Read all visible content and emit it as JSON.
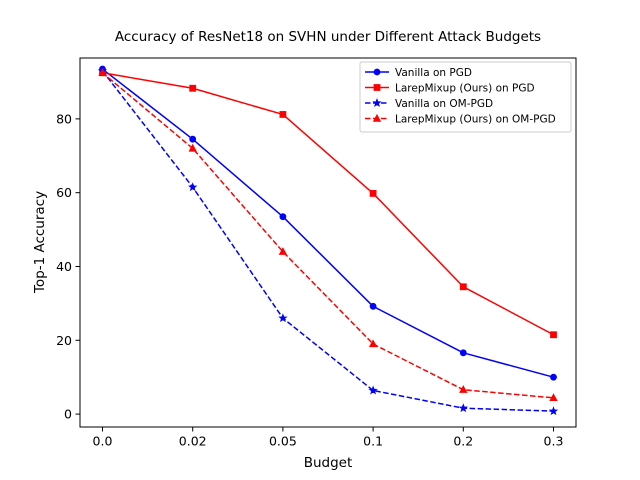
{
  "chart_data": {
    "type": "line",
    "title": "Accuracy of ResNet18 on SVHN under Different Attack Budgets",
    "xlabel": "Budget",
    "ylabel": "Top-1 Accuracy",
    "categories": [
      "0.0",
      "0.02",
      "0.05",
      "0.1",
      "0.2",
      "0.3"
    ],
    "ylim": [
      -3.5,
      96.5
    ],
    "yticks": [
      0,
      20,
      40,
      60,
      80
    ],
    "grid": false,
    "legend_position": "top-right",
    "series": [
      {
        "name": "Vanilla on PGD",
        "color": "#0000ff",
        "linestyle": "solid",
        "marker": "circle",
        "values": [
          93.5,
          74.5,
          53.5,
          29.2,
          16.6,
          10.0
        ]
      },
      {
        "name": "LarepMixup (Ours) on PGD",
        "color": "#ff0000",
        "linestyle": "solid",
        "marker": "square",
        "values": [
          92.5,
          88.3,
          81.2,
          59.8,
          34.5,
          21.5
        ]
      },
      {
        "name": "Vanilla on OM-PGD",
        "color": "#0000ff",
        "linestyle": "dashed",
        "marker": "star",
        "values": [
          93.0,
          61.5,
          26.0,
          6.4,
          1.6,
          0.8
        ]
      },
      {
        "name": "LarepMixup (Ours) on OM-PGD",
        "color": "#ff0000",
        "linestyle": "dashed",
        "marker": "triangle",
        "values": [
          92.5,
          72.0,
          44.0,
          19.0,
          6.6,
          4.4
        ]
      }
    ]
  }
}
